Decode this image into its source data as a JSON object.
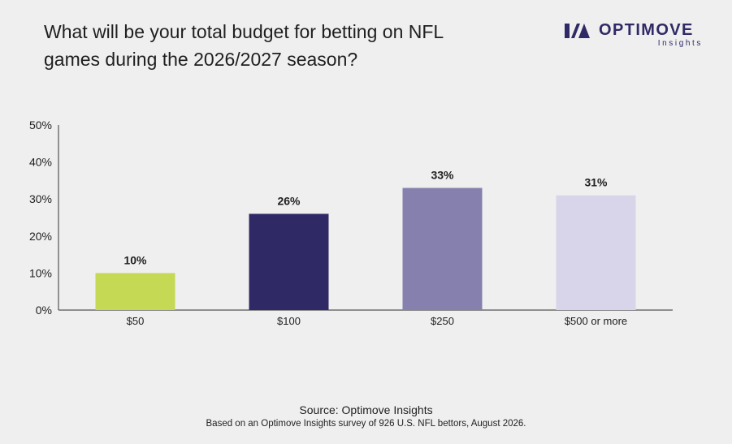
{
  "header": {
    "title": "What will be your total budget for betting on NFL games during the 2026/2027 season?",
    "brand": "OPTIMOVE",
    "brand_sub": "Insights"
  },
  "footer": {
    "source": "Source: Optimove Insights",
    "note": "Based on an Optimove Insights survey of 926 U.S. NFL bettors, August 2026."
  },
  "chart_data": {
    "type": "bar",
    "categories": [
      "$50",
      "$100",
      "$250",
      "$500 or more"
    ],
    "values": [
      10,
      26,
      33,
      31
    ],
    "data_labels": [
      "10%",
      "26%",
      "33%",
      "31%"
    ],
    "colors": [
      "#c5d955",
      "#2f2a66",
      "#8580ad",
      "#d8d5ea"
    ],
    "yticks": [
      "0%",
      "10%",
      "20%",
      "30%",
      "40%",
      "50%"
    ],
    "ylim": [
      0,
      50
    ],
    "grid": false,
    "legend": "none"
  },
  "colors": {
    "brand": "#2f2a66",
    "background": "#efefef",
    "axis": "#555555"
  }
}
